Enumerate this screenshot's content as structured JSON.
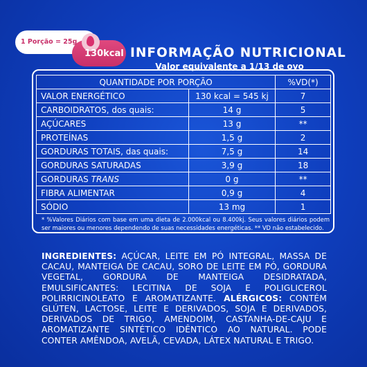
{
  "badge": {
    "portion": "1 Porção = 25g",
    "kcal": "130kcal"
  },
  "header": {
    "title": "INFORMAÇÃO NUTRICIONAL",
    "subtitle": "Valor equivalente a 1/13 de ovo"
  },
  "table": {
    "header_portion": "QUANTIDADE POR PORÇÃO",
    "header_vd": "%VD(*)",
    "rows": [
      {
        "name": "VALOR ENERGÉTICO",
        "qty": "130 kcal = 545 kj",
        "vd": "7"
      },
      {
        "name": "CARBOIDRATOS, dos quais:",
        "qty": "14 g",
        "vd": "5"
      },
      {
        "name": "AÇÚCARES",
        "qty": "13 g",
        "vd": "**"
      },
      {
        "name": "PROTEÍNAS",
        "qty": "1,5 g",
        "vd": "2"
      },
      {
        "name": "GORDURAS TOTAIS, das quais:",
        "qty": "7,5 g",
        "vd": "14"
      },
      {
        "name": "GORDURAS SATURADAS",
        "qty": "3,9 g",
        "vd": "18"
      },
      {
        "name": "GORDURAS ",
        "name_italic": "TRANS",
        "qty": "0 g",
        "vd": "**"
      },
      {
        "name": "FIBRA ALIMENTAR",
        "qty": "0,9 g",
        "vd": "4"
      },
      {
        "name": "SÓDIO",
        "qty": "13 mg",
        "vd": "1"
      }
    ]
  },
  "footnote": "* %Valores Diários com base em uma dieta de 2.000kcal ou 8.400kj. Seus valores diários podem ser maiores ou menores dependendo de suas necessidades energéticas. ** VD não estabelecido.",
  "ingredients": {
    "label": "INGREDIENTES:",
    "text": " AÇÚCAR, LEITE EM PÓ INTEGRAL, MASSA DE CACAU, MANTEIGA DE CACAU, SORO DE LEITE EM PÓ, GORDURA VEGETAL, GORDURA DE MANTEIGA DESIDRATADA, EMULSIFICANTES: LECITINA DE SOJA E POLIGLICEROL POLIRRICINOLEATO E AROMATIZANTE.",
    "allergens_label": "ALÉRGICOS:",
    "allergens_text": " CONTÉM GLÚTEN, LACTOSE, LEITE E DERIVADOS, SOJA E DERIVADOS, DERIVADOS DE TRIGO, AMENDOIM, CASTANHA-DE-CAJU E AROMATIZANTE SINTÉTICO IDÊNTICO AO NATURAL. PODE CONTER AMÊNDOA, AVELÃ, CEVADA, LÁTEX NATURAL E TRIGO."
  },
  "colors": {
    "background": "#0f3fbf",
    "accent_pink": "#d9306e",
    "text": "#ffffff"
  }
}
